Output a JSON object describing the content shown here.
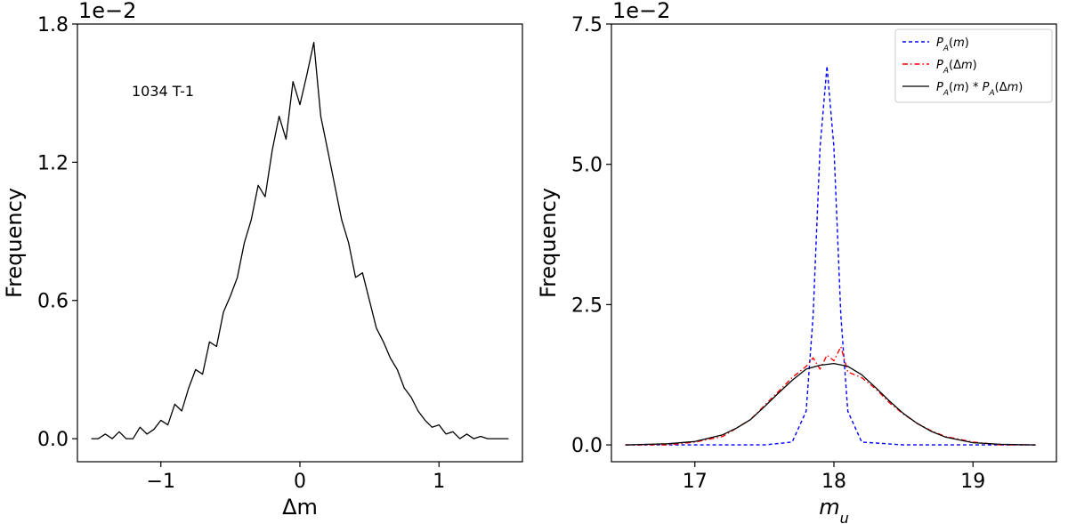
{
  "chart_data": [
    {
      "type": "line",
      "ylabel": "Frequency",
      "xlabel": "Δm",
      "offset_text": "1e−2",
      "annotation": "1034 T-1",
      "xlim": [
        -1.6,
        1.6
      ],
      "ylim": [
        -0.1,
        1.8
      ],
      "xticks": [
        -1,
        0,
        1
      ],
      "xtick_labels": [
        "−1",
        "0",
        "1"
      ],
      "yticks": [
        0.0,
        0.6,
        1.2,
        1.8
      ],
      "ytick_labels": [
        "0.0",
        "0.6",
        "1.2",
        "1.8"
      ],
      "grid": false,
      "series": [
        {
          "color": "#000000",
          "style": "solid",
          "x": [
            -1.5,
            -1.45,
            -1.4,
            -1.35,
            -1.3,
            -1.25,
            -1.2,
            -1.15,
            -1.1,
            -1.05,
            -1.0,
            -0.95,
            -0.9,
            -0.85,
            -0.8,
            -0.75,
            -0.7,
            -0.65,
            -0.6,
            -0.55,
            -0.5,
            -0.45,
            -0.4,
            -0.35,
            -0.3,
            -0.25,
            -0.2,
            -0.15,
            -0.1,
            -0.05,
            0.0,
            0.05,
            0.1,
            0.15,
            0.2,
            0.25,
            0.3,
            0.35,
            0.4,
            0.45,
            0.5,
            0.55,
            0.6,
            0.65,
            0.7,
            0.75,
            0.8,
            0.85,
            0.9,
            0.95,
            1.0,
            1.05,
            1.1,
            1.15,
            1.2,
            1.25,
            1.3,
            1.35,
            1.4,
            1.45,
            1.5
          ],
          "y": [
            0.0,
            0.0,
            0.02,
            0.0,
            0.03,
            0.0,
            0.0,
            0.05,
            0.02,
            0.04,
            0.08,
            0.06,
            0.15,
            0.12,
            0.22,
            0.3,
            0.28,
            0.42,
            0.4,
            0.55,
            0.62,
            0.7,
            0.85,
            0.95,
            1.1,
            1.05,
            1.25,
            1.4,
            1.3,
            1.55,
            1.45,
            1.58,
            1.72,
            1.4,
            1.25,
            1.1,
            0.95,
            0.85,
            0.7,
            0.72,
            0.6,
            0.48,
            0.42,
            0.35,
            0.3,
            0.22,
            0.18,
            0.12,
            0.08,
            0.05,
            0.06,
            0.02,
            0.03,
            0.0,
            0.02,
            0.0,
            0.01,
            0.0,
            0.0,
            0.0,
            0.0
          ]
        }
      ]
    },
    {
      "type": "line",
      "ylabel": "Frequency",
      "xlabel": "m_u",
      "offset_text": "1e−2",
      "xlim": [
        16.4,
        19.6
      ],
      "ylim": [
        -0.3,
        7.5
      ],
      "xticks": [
        17,
        18,
        19
      ],
      "xtick_labels": [
        "17",
        "18",
        "19"
      ],
      "yticks": [
        0.0,
        2.5,
        5.0,
        7.5
      ],
      "ytick_labels": [
        "0.0",
        "2.5",
        "5.0",
        "7.5"
      ],
      "grid": false,
      "legend": {
        "placement": "top-right",
        "entries": [
          "P_A(m)",
          "P_A(Δm)",
          "P_A(m) * P_A(Δm)"
        ]
      },
      "series": [
        {
          "name": "P_A(m)",
          "color": "#0000ff",
          "style": "dashed",
          "x": [
            16.5,
            17.0,
            17.5,
            17.7,
            17.8,
            17.85,
            17.9,
            17.95,
            18.0,
            18.05,
            18.1,
            18.2,
            18.5,
            19.0,
            19.45
          ],
          "y": [
            0.0,
            0.0,
            0.0,
            0.05,
            0.6,
            2.3,
            5.3,
            6.75,
            5.3,
            2.3,
            0.6,
            0.05,
            0.0,
            0.0,
            0.0
          ]
        },
        {
          "name": "P_A(Δm)",
          "color": "#ff0000",
          "style": "dashdot",
          "x": [
            16.5,
            16.8,
            17.0,
            17.2,
            17.3,
            17.4,
            17.5,
            17.6,
            17.7,
            17.8,
            17.85,
            17.9,
            17.95,
            18.0,
            18.05,
            18.1,
            18.2,
            18.3,
            18.4,
            18.5,
            18.6,
            18.7,
            18.8,
            19.0,
            19.2,
            19.45
          ],
          "y": [
            0.0,
            0.0,
            0.05,
            0.15,
            0.3,
            0.45,
            0.7,
            0.95,
            1.2,
            1.4,
            1.55,
            1.35,
            1.6,
            1.5,
            1.75,
            1.3,
            1.2,
            1.0,
            0.75,
            0.55,
            0.38,
            0.25,
            0.15,
            0.05,
            0.0,
            0.0
          ]
        },
        {
          "name": "P_A(m) * P_A(Δm)",
          "color": "#000000",
          "style": "solid",
          "x": [
            16.5,
            16.8,
            17.0,
            17.2,
            17.3,
            17.4,
            17.5,
            17.6,
            17.7,
            17.8,
            17.9,
            18.0,
            18.1,
            18.2,
            18.3,
            18.4,
            18.5,
            18.6,
            18.7,
            18.8,
            19.0,
            19.2,
            19.45
          ],
          "y": [
            0.0,
            0.02,
            0.06,
            0.18,
            0.3,
            0.45,
            0.68,
            0.92,
            1.15,
            1.35,
            1.42,
            1.45,
            1.4,
            1.25,
            1.02,
            0.78,
            0.56,
            0.38,
            0.24,
            0.14,
            0.04,
            0.01,
            0.0
          ]
        }
      ]
    }
  ]
}
